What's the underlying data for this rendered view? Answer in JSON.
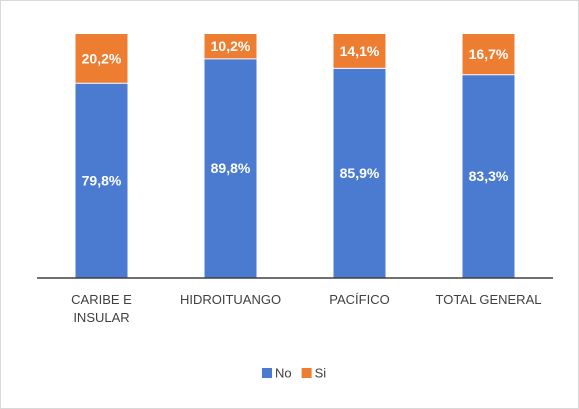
{
  "chart_data": {
    "type": "stacked_bar_100",
    "categories": [
      "CARIBE E INSULAR",
      "HIDROITUANGO",
      "PACÍFICO",
      "TOTAL GENERAL"
    ],
    "series": [
      {
        "name": "No",
        "color": "#4a7bd0",
        "values": [
          79.8,
          89.8,
          85.9,
          83.3
        ],
        "value_labels": [
          "79,8%",
          "89,8%",
          "85,9%",
          "83,3%"
        ]
      },
      {
        "name": "Si",
        "color": "#ed7d31",
        "values": [
          20.2,
          10.2,
          14.1,
          16.7
        ],
        "value_labels": [
          "20,2%",
          "10,2%",
          "14,1%",
          "16,7%"
        ]
      }
    ],
    "legend": "bottom"
  }
}
